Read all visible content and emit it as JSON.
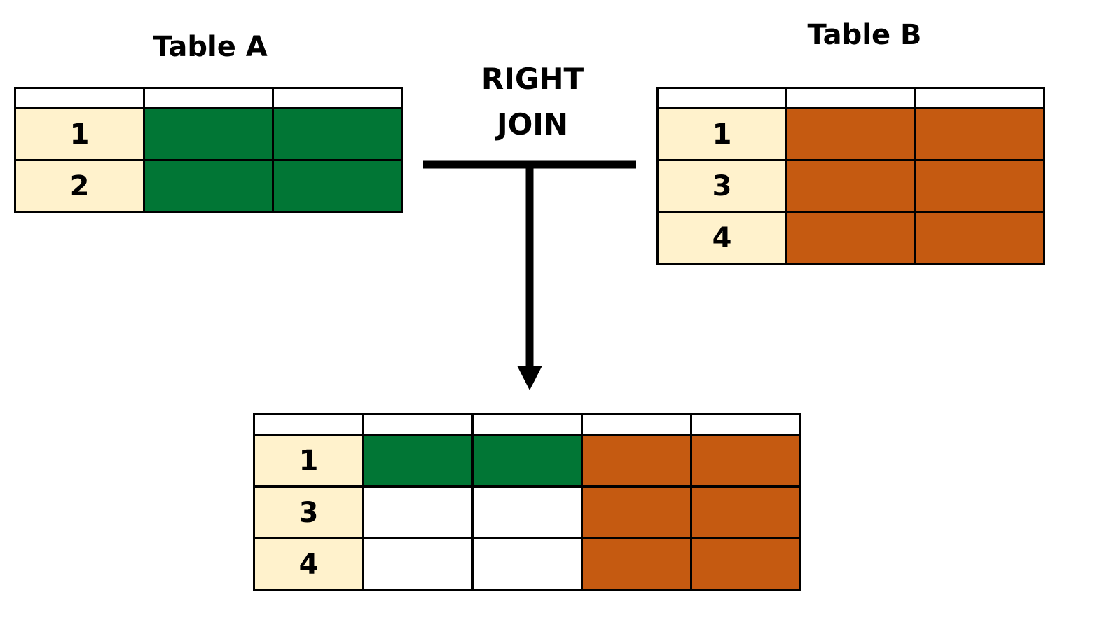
{
  "table_a": {
    "title": "Table A",
    "rows": [
      {
        "key": "1"
      },
      {
        "key": "2"
      }
    ]
  },
  "table_b": {
    "title": "Table B",
    "rows": [
      {
        "key": "1"
      },
      {
        "key": "3"
      },
      {
        "key": "4"
      }
    ]
  },
  "join": {
    "line1": "RIGHT",
    "line2": "JOIN"
  },
  "result": {
    "rows": [
      {
        "key": "1"
      },
      {
        "key": "3"
      },
      {
        "key": "4"
      }
    ]
  },
  "colors": {
    "key_fill": "#fff2cc",
    "table_a_fill": "#017635",
    "table_b_fill": "#c55a11",
    "empty_fill": "#ffffff",
    "line": "#000000"
  }
}
